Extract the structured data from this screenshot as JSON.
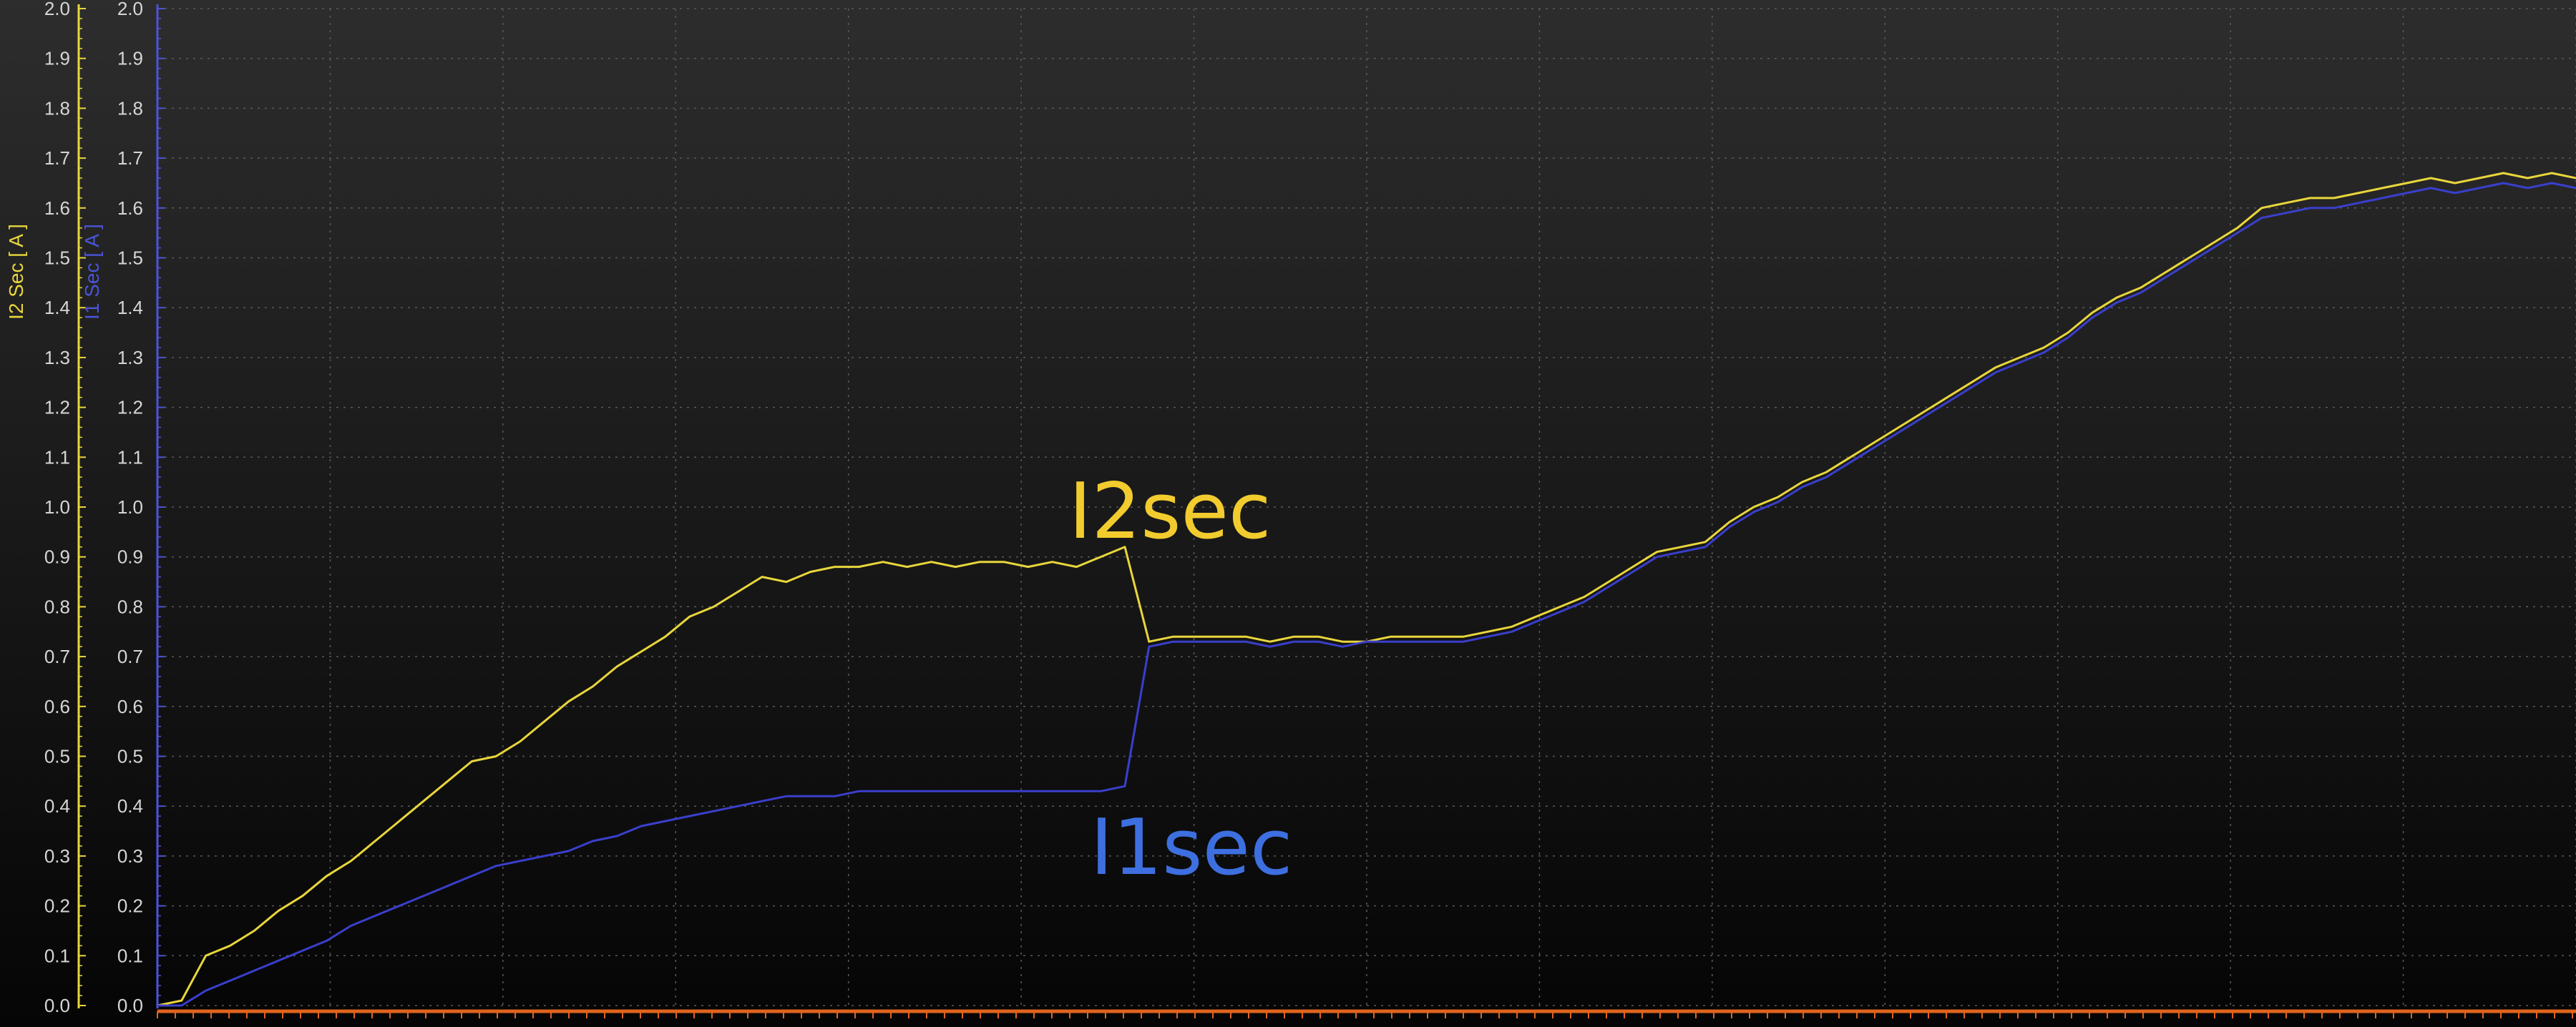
{
  "chart_data": {
    "type": "line",
    "title": "",
    "axes": {
      "left_outer": {
        "label": "I2 Sec [ A ]",
        "color": "#e8d63c",
        "ylim": [
          0,
          2.0
        ],
        "ticks": [
          "0.0",
          "0.1",
          "0.2",
          "0.3",
          "0.4",
          "0.5",
          "0.6",
          "0.7",
          "0.8",
          "0.9",
          "1.0",
          "1.1",
          "1.2",
          "1.3",
          "1.4",
          "1.5",
          "1.6",
          "1.7",
          "1.8",
          "1.9",
          "2.0"
        ]
      },
      "left_inner": {
        "label": "I1 Sec [ A ]",
        "color": "#4b54d8",
        "ylim": [
          0,
          2.0
        ],
        "ticks": [
          "0.0",
          "0.1",
          "0.2",
          "0.3",
          "0.4",
          "0.5",
          "0.6",
          "0.7",
          "0.8",
          "0.9",
          "1.0",
          "1.1",
          "1.2",
          "1.3",
          "1.4",
          "1.5",
          "1.6",
          "1.7",
          "1.8",
          "1.9",
          "2.0"
        ]
      }
    },
    "x": [
      0,
      1,
      2,
      3,
      4,
      5,
      6,
      7,
      8,
      9,
      10,
      11,
      12,
      13,
      14,
      15,
      16,
      17,
      18,
      19,
      20,
      21,
      22,
      23,
      24,
      25,
      26,
      27,
      28,
      29,
      30,
      31,
      32,
      33,
      34,
      35,
      36,
      37,
      38,
      39,
      40,
      41,
      42,
      43,
      44,
      45,
      46,
      47,
      48,
      49,
      50,
      51,
      52,
      53,
      54,
      55,
      56,
      57,
      58,
      59,
      60,
      61,
      62,
      63,
      64,
      65,
      66,
      67,
      68,
      69,
      70,
      71,
      72,
      73,
      74,
      75,
      76,
      77,
      78,
      79,
      80,
      81,
      82,
      83,
      84,
      85,
      86,
      87,
      88,
      89,
      90,
      91,
      92,
      93,
      94,
      95,
      96,
      97,
      98,
      99,
      100
    ],
    "xlim": [
      0,
      100
    ],
    "grid": true,
    "series": [
      {
        "name": "I2sec",
        "color": "#e8d63c",
        "values": [
          0.0,
          0.01,
          0.1,
          0.12,
          0.15,
          0.19,
          0.22,
          0.26,
          0.29,
          0.33,
          0.37,
          0.41,
          0.45,
          0.49,
          0.5,
          0.53,
          0.57,
          0.61,
          0.64,
          0.68,
          0.71,
          0.74,
          0.78,
          0.8,
          0.83,
          0.86,
          0.85,
          0.87,
          0.88,
          0.88,
          0.89,
          0.88,
          0.89,
          0.88,
          0.89,
          0.89,
          0.88,
          0.89,
          0.88,
          0.9,
          0.92,
          0.73,
          0.74,
          0.74,
          0.74,
          0.74,
          0.73,
          0.74,
          0.74,
          0.73,
          0.73,
          0.74,
          0.74,
          0.74,
          0.74,
          0.75,
          0.76,
          0.78,
          0.8,
          0.82,
          0.85,
          0.88,
          0.91,
          0.92,
          0.93,
          0.97,
          1.0,
          1.02,
          1.05,
          1.07,
          1.1,
          1.13,
          1.16,
          1.19,
          1.22,
          1.25,
          1.28,
          1.3,
          1.32,
          1.35,
          1.39,
          1.42,
          1.44,
          1.47,
          1.5,
          1.53,
          1.56,
          1.6,
          1.61,
          1.62,
          1.62,
          1.63,
          1.64,
          1.65,
          1.66,
          1.65,
          1.66,
          1.67,
          1.66,
          1.67,
          1.66
        ]
      },
      {
        "name": "I1sec",
        "color": "#3a3fcc",
        "values": [
          0.0,
          0.0,
          0.03,
          0.05,
          0.07,
          0.09,
          0.11,
          0.13,
          0.16,
          0.18,
          0.2,
          0.22,
          0.24,
          0.26,
          0.28,
          0.29,
          0.3,
          0.31,
          0.33,
          0.34,
          0.36,
          0.37,
          0.38,
          0.39,
          0.4,
          0.41,
          0.42,
          0.42,
          0.42,
          0.43,
          0.43,
          0.43,
          0.43,
          0.43,
          0.43,
          0.43,
          0.43,
          0.43,
          0.43,
          0.43,
          0.44,
          0.72,
          0.73,
          0.73,
          0.73,
          0.73,
          0.72,
          0.73,
          0.73,
          0.72,
          0.73,
          0.73,
          0.73,
          0.73,
          0.73,
          0.74,
          0.75,
          0.77,
          0.79,
          0.81,
          0.84,
          0.87,
          0.9,
          0.91,
          0.92,
          0.96,
          0.99,
          1.01,
          1.04,
          1.06,
          1.09,
          1.12,
          1.15,
          1.18,
          1.21,
          1.24,
          1.27,
          1.29,
          1.31,
          1.34,
          1.38,
          1.41,
          1.43,
          1.46,
          1.49,
          1.52,
          1.55,
          1.58,
          1.59,
          1.6,
          1.6,
          1.61,
          1.62,
          1.63,
          1.64,
          1.63,
          1.64,
          1.65,
          1.64,
          1.65,
          1.64
        ]
      }
    ],
    "annotations": [
      {
        "text": "I2sec",
        "color": "#f2cc2e"
      },
      {
        "text": "I1sec",
        "color": "#3d6fe0"
      }
    ]
  }
}
